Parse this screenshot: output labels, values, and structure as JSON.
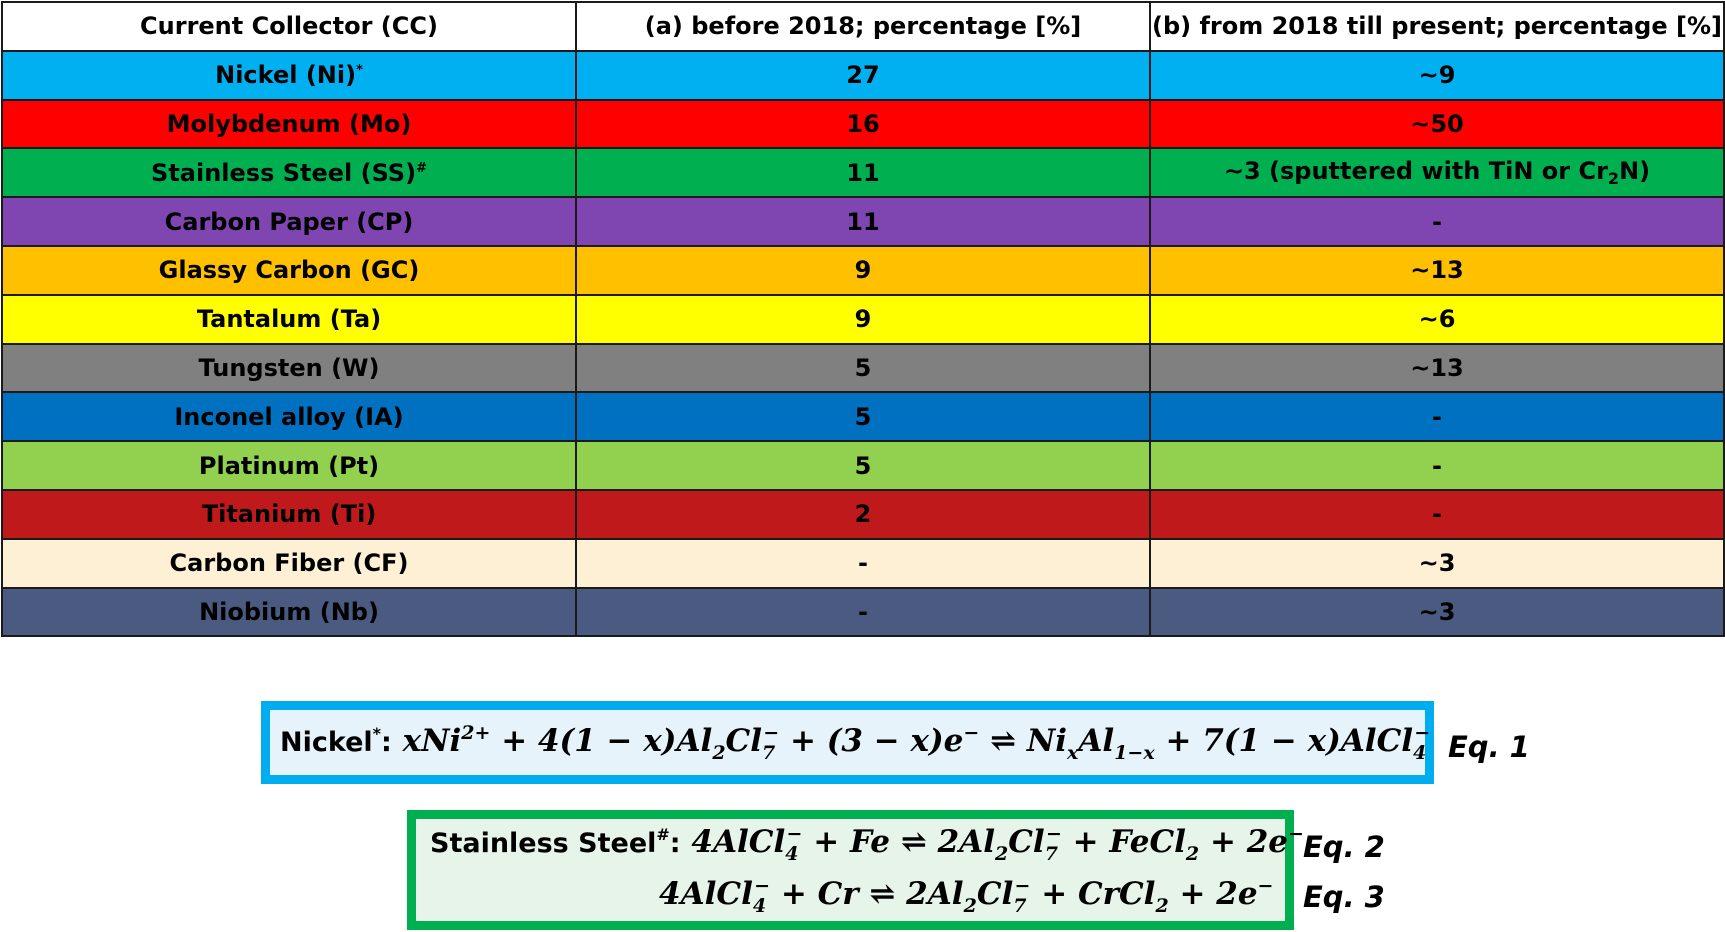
{
  "table": {
    "headers": [
      "Current Collector (CC)",
      "(a) before 2018; percentage [%]",
      "(b) from 2018 till present; percentage [%]"
    ],
    "rows": [
      {
        "name": "Nickel (Ni)",
        "mark": "*",
        "before": "27",
        "after": "~9",
        "bg": "#00b0f0",
        "fg": "#000000"
      },
      {
        "name": "Molybdenum (Mo)",
        "before": "16",
        "after": "~50",
        "bg": "#ff0000",
        "fg": "#000000"
      },
      {
        "name": "Stainless Steel (SS)",
        "mark": "#",
        "before": "11",
        "after_pre": "~3 (sputtered with TiN or Cr",
        "after_sub": "2",
        "after_post": "N)",
        "bg": "#00b050",
        "fg": "#000000"
      },
      {
        "name": "Carbon Paper (CP)",
        "before": "11",
        "after": "-",
        "bg": "#7f46b2",
        "fg": "#000000"
      },
      {
        "name": "Glassy Carbon (GC)",
        "before": "9",
        "after": "~13",
        "bg": "#ffc000",
        "fg": "#000000"
      },
      {
        "name": "Tantalum (Ta)",
        "before": "9",
        "after": "~6",
        "bg": "#ffff00",
        "fg": "#000000"
      },
      {
        "name": "Tungsten (W)",
        "before": "5",
        "after": "~13",
        "bg": "#808080",
        "fg": "#000000"
      },
      {
        "name": "Inconel alloy (IA)",
        "before": "5",
        "after": "-",
        "bg": "#0070c0",
        "fg": "#000000"
      },
      {
        "name": "Platinum (Pt)",
        "before": "5",
        "after": "-",
        "bg": "#92d050",
        "fg": "#000000"
      },
      {
        "name": "Titanium (Ti)",
        "before": "2",
        "after": "-",
        "bg": "#c0191b",
        "fg": "#000000"
      },
      {
        "name": "Carbon Fiber (CF)",
        "before": "-",
        "after": "~3",
        "bg": "#fdf0d5",
        "fg": "#000000"
      },
      {
        "name": "Niobium (Nb)",
        "before": "-",
        "after": "~3",
        "bg": "#4a5a80",
        "fg": "#000000"
      }
    ]
  },
  "equations": {
    "eq1": {
      "label": "Nickel",
      "mark": "*",
      "colon": ":",
      "tag": "Eq. 1",
      "p1": "xNi",
      "p1_sup": "2+",
      "p2": "+ 4(1 − x)Al",
      "p2_sub": "2",
      "p2b": "Cl",
      "p2_sub2": "7",
      "p2_sup2": "−",
      "p3": "+ (3 − x)e",
      "p3_sup": "−",
      "arrow": "⇌",
      "p4": "Ni",
      "p4_sub": "x",
      "p4b": "Al",
      "p4_sub2": "1−x",
      "p5": "+ 7(1 − x)AlCl",
      "p5_sub": "4",
      "p5_sup": "−"
    },
    "eq2": {
      "label": "Stainless Steel",
      "mark": "#",
      "colon": ":",
      "tag": "Eq. 2",
      "p1": "4AlCl",
      "p1_sub": "4",
      "p1_sup": "−",
      "p2": "+ Fe",
      "arrow": "⇌",
      "p3": "2Al",
      "p3_sub": "2",
      "p3b": "Cl",
      "p3_sub2": "7",
      "p3_sup2": "−",
      "p4": "+ FeCl",
      "p4_sub": "2",
      "p5": "+ 2e",
      "p5_sup": "−"
    },
    "eq3": {
      "tag": "Eq. 3",
      "p1": "4AlCl",
      "p1_sub": "4",
      "p1_sup": "−",
      "p2": "+ Cr",
      "arrow": "⇌",
      "p3": "2Al",
      "p3_sub": "2",
      "p3b": "Cl",
      "p3_sub2": "7",
      "p3_sup2": "−",
      "p4": "+ CrCl",
      "p4_sub": "2",
      "p5": "+ 2e",
      "p5_sup": "−"
    }
  }
}
